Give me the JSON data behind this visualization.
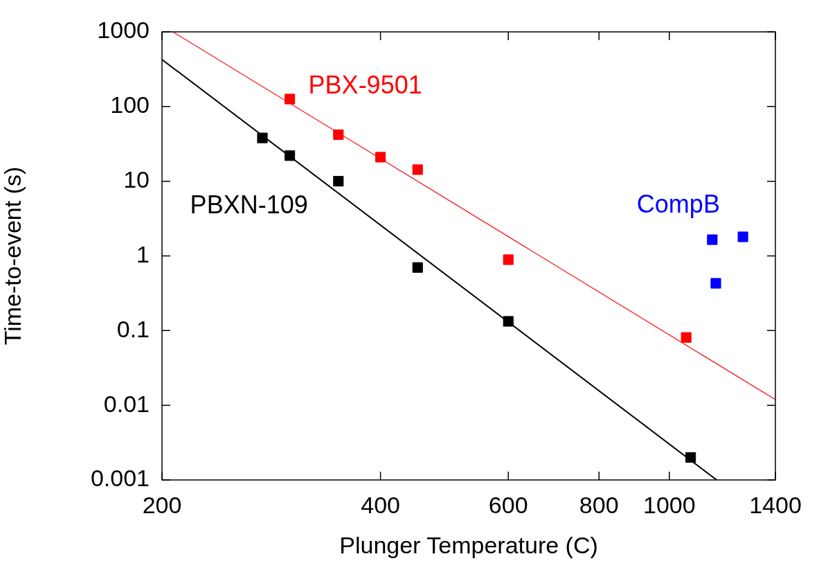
{
  "chart_data": {
    "type": "scatter",
    "xlabel": "Plunger Temperature (C)",
    "ylabel": "Time-to-event (s)",
    "log": "xy",
    "grid": false,
    "legend": false,
    "xlim": [
      200,
      1400
    ],
    "xticks": [
      200,
      400,
      600,
      800,
      1000,
      1400
    ],
    "ylim": [
      0.001,
      1000
    ],
    "yticks": [
      0.001,
      0.01,
      0.1,
      1,
      10,
      100,
      1000
    ],
    "series": [
      {
        "type": "line",
        "color": "#000000",
        "x": [
          200,
          1162
        ],
        "values": [
          426,
          0.001
        ]
      },
      {
        "type": "line",
        "color": "#ff0000",
        "x": [
          207,
          1400
        ],
        "values": [
          1000,
          0.0119
        ]
      },
      {
        "marker": "square",
        "color": "#000000",
        "x": [
          275
        ],
        "values": [
          38
        ]
      },
      {
        "marker": "square",
        "name": "PBXN-109",
        "color": "#000000",
        "x": [
          300,
          350,
          450,
          600,
          1070
        ],
        "values": [
          22,
          10,
          0.7,
          0.133,
          0.002
        ]
      },
      {
        "marker": "square",
        "color": "#ff0000",
        "x": [
          300,
          350
        ],
        "values": [
          126,
          42
        ]
      },
      {
        "marker": "square",
        "name": "PBX-9501",
        "color": "#ff0000",
        "x": [
          400,
          450,
          600,
          1055
        ],
        "values": [
          21,
          14.3,
          0.89,
          0.081
        ]
      },
      {
        "marker": "square",
        "name": "CompB",
        "color": "#0000ff",
        "x": [
          1146,
          1159,
          1263
        ],
        "values": [
          1.65,
          0.43,
          1.8
        ]
      }
    ]
  }
}
